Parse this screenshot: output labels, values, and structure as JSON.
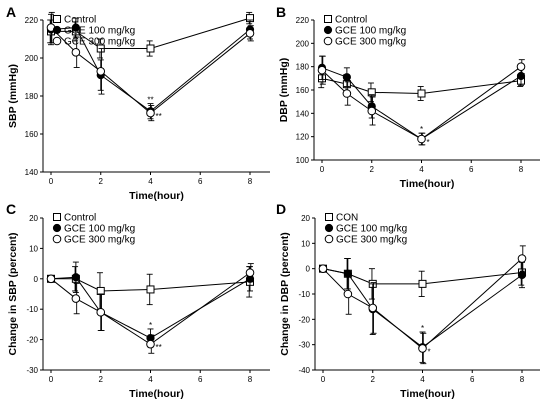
{
  "colors": {
    "ink": "#000000",
    "open_fill": "#ffffff",
    "closed_fill": "#000000"
  },
  "chart_data": [
    {
      "panel": "A",
      "type": "line",
      "xlabel": "Time(hour)",
      "ylabel": "SBP (mmHg)",
      "xlim": [
        0,
        8.3
      ],
      "ylim": [
        140,
        220
      ],
      "xticks": [
        0,
        2,
        4,
        6,
        8
      ],
      "yticks": [
        140,
        160,
        180,
        200,
        220
      ],
      "legend_position": "top-left",
      "x": [
        0,
        1,
        2,
        4,
        8
      ],
      "series": [
        {
          "name": "Control",
          "marker": "open-square",
          "values": [
            214,
            214,
            205,
            205,
            221
          ],
          "errors": [
            6,
            5,
            5,
            4,
            3
          ]
        },
        {
          "name": "GCE 100 mg/kg",
          "marker": "filled-circle",
          "values": [
            215,
            216,
            191,
            172,
            215
          ],
          "errors": [
            8,
            5,
            8,
            4,
            5
          ]
        },
        {
          "name": "GCE 300 mg/kg",
          "marker": "open-circle",
          "values": [
            216,
            203,
            193,
            171,
            213
          ],
          "errors": [
            8,
            8,
            12,
            4,
            4
          ]
        }
      ],
      "annotations": [
        {
          "x": 4,
          "series": "GCE 100 mg/kg",
          "text": "**",
          "placement": "above"
        },
        {
          "x": 4,
          "series": "GCE 300 mg/kg",
          "text": "**",
          "placement": "right"
        }
      ]
    },
    {
      "panel": "B",
      "type": "line",
      "xlabel": "Time(hour)",
      "ylabel": "DBP (mmHg)",
      "xlim": [
        0,
        8.3
      ],
      "ylim": [
        100,
        220
      ],
      "xticks": [
        0,
        2,
        4,
        6,
        8
      ],
      "yticks": [
        100,
        120,
        140,
        160,
        180,
        200,
        220
      ],
      "legend_position": "top-left",
      "x": [
        0,
        1,
        2,
        4,
        8
      ],
      "series": [
        {
          "name": "Control",
          "marker": "open-square",
          "values": [
            170,
            165,
            158,
            157,
            168
          ],
          "errors": [
            8,
            8,
            8,
            6,
            5
          ]
        },
        {
          "name": "GCE 100 mg/kg",
          "marker": "filled-circle",
          "values": [
            179,
            171,
            146,
            118,
            172
          ],
          "errors": [
            10,
            8,
            10,
            5,
            8
          ]
        },
        {
          "name": "GCE 300 mg/kg",
          "marker": "open-circle",
          "values": [
            177,
            157,
            142,
            118,
            180
          ],
          "errors": [
            12,
            10,
            12,
            5,
            6
          ]
        }
      ],
      "annotations": [
        {
          "x": 4,
          "series": "GCE 100 mg/kg",
          "text": "*",
          "placement": "above"
        },
        {
          "x": 4,
          "series": "GCE 300 mg/kg",
          "text": "*",
          "placement": "right"
        }
      ]
    },
    {
      "panel": "C",
      "type": "line",
      "xlabel": "Time(hour)",
      "ylabel": "Change in SBP (percent)",
      "xlim": [
        0,
        8.3
      ],
      "ylim": [
        -30,
        20
      ],
      "xticks": [
        0,
        2,
        4,
        6,
        8
      ],
      "yticks": [
        -30,
        -20,
        -10,
        0,
        10,
        20
      ],
      "legend_position": "top-left",
      "x": [
        0,
        1,
        2,
        4,
        8
      ],
      "series": [
        {
          "name": "Control",
          "marker": "open-square",
          "values": [
            0,
            0,
            -4,
            -3.5,
            -1
          ],
          "errors": [
            0,
            4,
            6,
            5,
            5
          ]
        },
        {
          "name": "GCE 100 mg/kg",
          "marker": "filled-circle",
          "values": [
            0,
            0.5,
            -11,
            -19.5,
            0
          ],
          "errors": [
            0,
            5,
            6,
            3,
            4
          ]
        },
        {
          "name": "GCE 300 mg/kg",
          "marker": "open-circle",
          "values": [
            0,
            -6.5,
            -11,
            -21.5,
            2
          ],
          "errors": [
            0,
            5,
            6,
            3,
            3
          ]
        }
      ],
      "annotations": [
        {
          "x": 4,
          "series": "GCE 100 mg/kg",
          "text": "*",
          "placement": "above"
        },
        {
          "x": 4,
          "series": "GCE 300 mg/kg",
          "text": "**",
          "placement": "right"
        }
      ]
    },
    {
      "panel": "D",
      "type": "line",
      "xlabel": "Time(hour)",
      "ylabel": "Change in DBP (percent)",
      "xlim": [
        0,
        8.3
      ],
      "ylim": [
        -40,
        20
      ],
      "xticks": [
        0,
        2,
        4,
        6,
        8
      ],
      "yticks": [
        -40,
        -30,
        -20,
        -10,
        0,
        10,
        20
      ],
      "legend_position": "top-left",
      "x": [
        0,
        1,
        2,
        4,
        8
      ],
      "series": [
        {
          "name": "CON",
          "marker": "open-square",
          "values": [
            0,
            -2,
            -6,
            -6,
            -1.5
          ],
          "errors": [
            0,
            6,
            6,
            5,
            5
          ]
        },
        {
          "name": "GCE 100 mg/kg",
          "marker": "filled-circle",
          "values": [
            0,
            -2,
            -16,
            -31,
            -2.5
          ],
          "errors": [
            0,
            6,
            10,
            6,
            5
          ]
        },
        {
          "name": "GCE 300 mg/kg",
          "marker": "open-circle",
          "values": [
            0,
            -10,
            -15.5,
            -31.5,
            4
          ],
          "errors": [
            0,
            8,
            10,
            6,
            5
          ]
        }
      ],
      "annotations": [
        {
          "x": 4,
          "series": "GCE 100 mg/kg",
          "text": "*",
          "placement": "above"
        },
        {
          "x": 4,
          "series": "GCE 300 mg/kg",
          "text": "*",
          "placement": "right"
        }
      ]
    }
  ]
}
